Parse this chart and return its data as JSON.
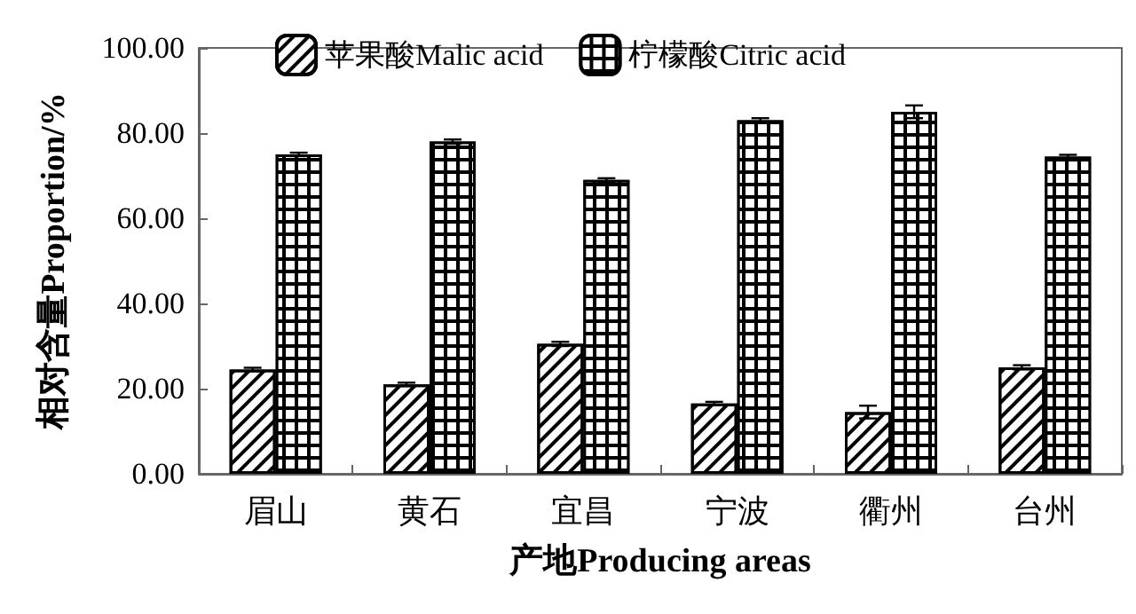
{
  "chart_data": {
    "type": "bar",
    "xlabel": "产地Producing areas",
    "ylabel": "相对含量Proportion/%",
    "categories": [
      "眉山",
      "黄石",
      "宜昌",
      "宁波",
      "衢州",
      "台州"
    ],
    "series": [
      {
        "name": "苹果酸Malic acid",
        "color": "#000000",
        "values": [
          24.5,
          21,
          30.5,
          16.5,
          14.5,
          25
        ],
        "errors": [
          0.4,
          0.4,
          0.5,
          0.4,
          1.5,
          0.5
        ]
      },
      {
        "name": "柠檬酸Citric acid",
        "color": "#000000",
        "values": [
          75,
          78,
          69,
          83,
          85,
          74.5
        ],
        "errors": [
          0.4,
          0.5,
          0.4,
          0.5,
          1.5,
          0.4
        ]
      }
    ],
    "ylim": [
      0,
      100
    ],
    "yticks": [
      {
        "value": 0,
        "label": "0.00"
      },
      {
        "value": 20,
        "label": "20.00"
      },
      {
        "value": 40,
        "label": "40.00"
      },
      {
        "value": 60,
        "label": "60.00"
      },
      {
        "value": 80,
        "label": "80.00"
      },
      {
        "value": 100,
        "label": "100.00"
      }
    ],
    "grid": false,
    "legend": "top"
  }
}
